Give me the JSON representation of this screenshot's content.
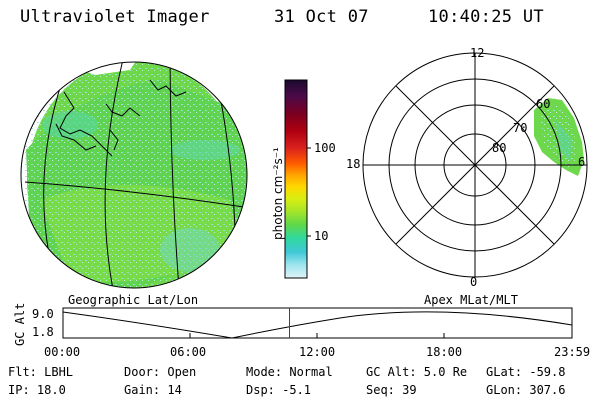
{
  "header": {
    "title": "Ultraviolet Imager",
    "date": "31 Oct 07",
    "time": "10:40:25 UT"
  },
  "map": {
    "caption": "Geographic Lat/Lon",
    "projection": "orthographic globe with lat/lon grid and coastlines"
  },
  "colorbar": {
    "unit_label": "photon cm⁻²s⁻¹",
    "tick_100": "100",
    "tick_10": "10",
    "colors": [
      "#1a0a2e",
      "#4b0a4a",
      "#7a0020",
      "#b00010",
      "#d8201e",
      "#ff5a00",
      "#ffa500",
      "#ffd800",
      "#d8ee10",
      "#a8e628",
      "#60d848",
      "#30d8a0",
      "#40c8d8",
      "#9ae4ee",
      "#dff4f6"
    ]
  },
  "polar": {
    "caption": "Apex MLat/MLT",
    "mlt_labels": {
      "top": "12",
      "left": "18",
      "right": "6",
      "bottom": "0"
    },
    "lat_labels": {
      "r80": "80",
      "r70": "70",
      "r60": "60"
    }
  },
  "altitude_plot": {
    "ylabel": "GC Alt",
    "yticks": [
      "9.0",
      "1.8"
    ],
    "xticks": [
      "00:00",
      "06:00",
      "12:00",
      "18:00",
      "23:59"
    ],
    "current_time_hours": 10.674,
    "marker_color": "#e00000"
  },
  "status": {
    "flt": "Flt: LBHL",
    "ip": "IP: 18.0",
    "door": "Door: Open",
    "gain": "Gain: 14",
    "mode": "Mode: Normal",
    "dsp": "Dsp:   -5.1",
    "gcalt": "GC Alt: 5.0 Re",
    "seq": "Seq: 39",
    "glat": "GLat: -59.8",
    "glon": "GLon: 307.6"
  }
}
